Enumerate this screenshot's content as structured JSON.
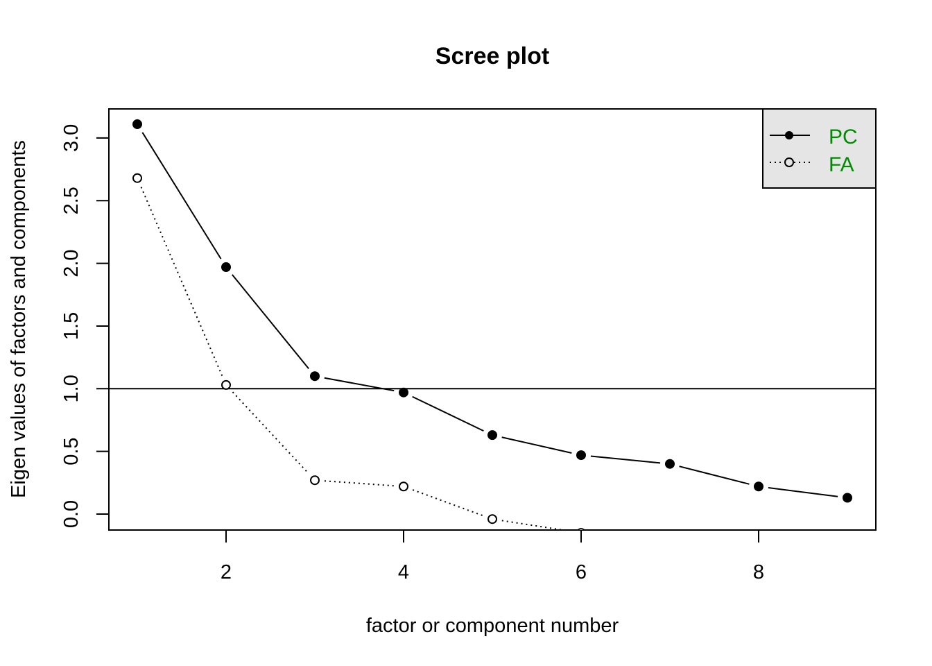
{
  "chart_data": {
    "type": "line",
    "title": "Scree plot",
    "xlabel": "factor or component number",
    "ylabel": "Eigen values of factors and components",
    "xlim": [
      0.68,
      9.32
    ],
    "ylim": [
      -0.13,
      3.23
    ],
    "x_ticks": [
      "2",
      "4",
      "6",
      "8"
    ],
    "y_ticks": [
      "0.0",
      "0.5",
      "1.0",
      "1.5",
      "2.0",
      "2.5",
      "3.0"
    ],
    "reference_line": 1.0,
    "grid": false,
    "legend_position": "top-right",
    "legend_text_color": "#008B00",
    "legend_background": "#E5E5E5",
    "series": [
      {
        "name": "PC",
        "marker": "filled-circle",
        "line": "solid",
        "x": [
          1,
          2,
          3,
          4,
          5,
          6,
          7,
          8,
          9
        ],
        "values": [
          3.11,
          1.97,
          1.1,
          0.97,
          0.63,
          0.47,
          0.4,
          0.22,
          0.13
        ]
      },
      {
        "name": "FA",
        "marker": "open-circle",
        "line": "dotted",
        "x": [
          1,
          2,
          3,
          4,
          5,
          6
        ],
        "values": [
          2.68,
          1.03,
          0.27,
          0.22,
          -0.04,
          -0.15
        ]
      }
    ]
  }
}
